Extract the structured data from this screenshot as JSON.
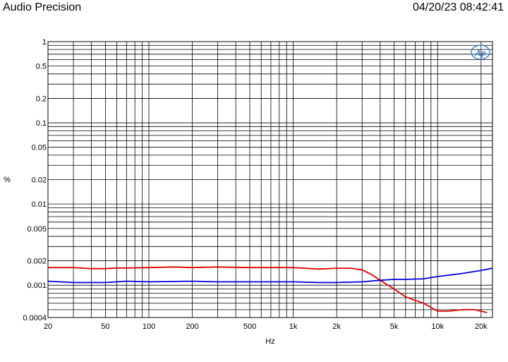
{
  "header": {
    "brand": "Audio Precision",
    "timestamp": "04/20/23 08:42:41"
  },
  "chart_data": {
    "type": "line",
    "title": "",
    "xlabel": "Hz",
    "ylabel": "%",
    "x_scale": "log",
    "y_scale": "log",
    "xlim": [
      20,
      24000
    ],
    "ylim": [
      0.0004,
      1
    ],
    "grid": true,
    "x_ticks": [
      {
        "value": 20,
        "label": "20"
      },
      {
        "value": 50,
        "label": "50"
      },
      {
        "value": 100,
        "label": "100"
      },
      {
        "value": 200,
        "label": "200"
      },
      {
        "value": 500,
        "label": "500"
      },
      {
        "value": 1000,
        "label": "1k"
      },
      {
        "value": 2000,
        "label": "2k"
      },
      {
        "value": 5000,
        "label": "5k"
      },
      {
        "value": 10000,
        "label": "10k"
      },
      {
        "value": 20000,
        "label": "20k"
      }
    ],
    "y_ticks": [
      {
        "value": 1,
        "label": "1"
      },
      {
        "value": 0.5,
        "label": "0.5"
      },
      {
        "value": 0.2,
        "label": "0.2"
      },
      {
        "value": 0.1,
        "label": "0.1"
      },
      {
        "value": 0.05,
        "label": "0.05"
      },
      {
        "value": 0.02,
        "label": "0.02"
      },
      {
        "value": 0.01,
        "label": "0.01"
      },
      {
        "value": 0.005,
        "label": "0.005"
      },
      {
        "value": 0.002,
        "label": "0.002"
      },
      {
        "value": 0.001,
        "label": "0.001"
      },
      {
        "value": 0.0004,
        "label": "0.0004"
      }
    ],
    "series": [
      {
        "color": "#e00000",
        "points": [
          [
            20,
            0.00165
          ],
          [
            30,
            0.00165
          ],
          [
            40,
            0.0016
          ],
          [
            50,
            0.0016
          ],
          [
            60,
            0.00163
          ],
          [
            70,
            0.00163
          ],
          [
            100,
            0.00165
          ],
          [
            150,
            0.00168
          ],
          [
            200,
            0.00165
          ],
          [
            300,
            0.00168
          ],
          [
            500,
            0.00165
          ],
          [
            700,
            0.00165
          ],
          [
            1000,
            0.00165
          ],
          [
            1500,
            0.00158
          ],
          [
            2000,
            0.00162
          ],
          [
            2500,
            0.00162
          ],
          [
            3000,
            0.00155
          ],
          [
            3500,
            0.00135
          ],
          [
            4000,
            0.00115
          ],
          [
            5000,
            0.0009
          ],
          [
            6000,
            0.00072
          ],
          [
            7000,
            0.00065
          ],
          [
            8000,
            0.0006
          ],
          [
            10000,
            0.00048
          ],
          [
            12000,
            0.00048
          ],
          [
            15000,
            0.0005
          ],
          [
            18000,
            0.0005
          ],
          [
            22000,
            0.00046
          ]
        ]
      },
      {
        "color": "#0000dd",
        "points": [
          [
            20,
            0.00112
          ],
          [
            30,
            0.00108
          ],
          [
            50,
            0.00108
          ],
          [
            70,
            0.00112
          ],
          [
            100,
            0.0011
          ],
          [
            200,
            0.00112
          ],
          [
            300,
            0.0011
          ],
          [
            500,
            0.0011
          ],
          [
            1000,
            0.0011
          ],
          [
            1500,
            0.00108
          ],
          [
            2000,
            0.00108
          ],
          [
            3000,
            0.0011
          ],
          [
            4000,
            0.00115
          ],
          [
            5000,
            0.00118
          ],
          [
            6000,
            0.00118
          ],
          [
            8000,
            0.0012
          ],
          [
            10000,
            0.00128
          ],
          [
            15000,
            0.0014
          ],
          [
            20000,
            0.00152
          ],
          [
            24000,
            0.00162
          ]
        ]
      }
    ],
    "logo": "ap-logo-icon"
  }
}
